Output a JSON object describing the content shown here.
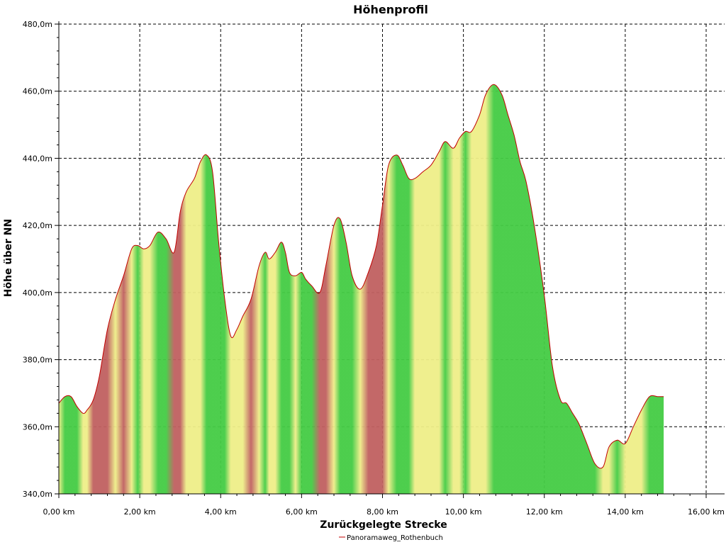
{
  "chart_data": {
    "type": "area",
    "title": "Höhenprofil",
    "xlabel": "Zurückgelegte Strecke",
    "ylabel": "Höhe über NN",
    "xlim": [
      0,
      16
    ],
    "ylim": [
      340,
      480
    ],
    "x_ticks": [
      0,
      2,
      4,
      6,
      8,
      10,
      12,
      14,
      16
    ],
    "x_tick_labels": [
      "0,00 km",
      "2,00 km",
      "4,00 km",
      "6,00 km",
      "8,00 km",
      "10,00 km",
      "12,00 km",
      "14,00 km",
      "16,00 km"
    ],
    "y_ticks": [
      340,
      360,
      380,
      400,
      420,
      440,
      460,
      480
    ],
    "y_tick_labels": [
      "340,0m",
      "360,0m",
      "380,0m",
      "400,0m",
      "420,0m",
      "440,0m",
      "460,0m",
      "480,0m"
    ],
    "grid": true,
    "legend": "bottom-center",
    "colors": {
      "line": "#c00000",
      "gradient_low": "#44cc44",
      "gradient_mid": "#eeee88",
      "gradient_high": "#c06060"
    },
    "series": [
      {
        "name": "Panoramaweg_Rothenbuch",
        "x": [
          0.0,
          0.15,
          0.3,
          0.45,
          0.6,
          0.7,
          0.85,
          1.0,
          1.2,
          1.4,
          1.6,
          1.8,
          1.95,
          2.1,
          2.25,
          2.45,
          2.65,
          2.85,
          3.0,
          3.15,
          3.35,
          3.5,
          3.65,
          3.8,
          3.95,
          4.1,
          4.25,
          4.4,
          4.55,
          4.75,
          4.95,
          5.1,
          5.2,
          5.35,
          5.5,
          5.6,
          5.7,
          5.85,
          6.0,
          6.1,
          6.25,
          6.45,
          6.6,
          6.8,
          6.95,
          7.1,
          7.25,
          7.45,
          7.65,
          7.85,
          8.0,
          8.15,
          8.35,
          8.5,
          8.65,
          8.8,
          9.0,
          9.2,
          9.4,
          9.55,
          9.75,
          9.9,
          10.05,
          10.2,
          10.4,
          10.55,
          10.75,
          10.95,
          11.1,
          11.25,
          11.4,
          11.55,
          11.75,
          12.0,
          12.2,
          12.4,
          12.55,
          12.7,
          12.85,
          13.05,
          13.25,
          13.45,
          13.6,
          13.8,
          14.0,
          14.2,
          14.4,
          14.6,
          14.8,
          14.95
        ],
        "y": [
          367,
          369,
          369,
          366,
          364,
          365,
          368,
          375,
          389,
          398,
          405,
          413,
          414,
          413,
          414,
          418,
          416,
          412,
          424,
          430,
          434,
          439,
          441,
          436,
          415,
          398,
          387,
          389,
          393,
          398,
          408,
          412,
          410,
          412,
          415,
          412,
          406,
          405,
          406,
          404,
          402,
          400,
          408,
          420,
          422,
          415,
          405,
          401,
          406,
          414,
          426,
          438,
          441,
          438,
          434,
          434,
          436,
          438,
          442,
          445,
          443,
          446,
          448,
          448,
          453,
          459,
          462,
          459,
          453,
          447,
          439,
          433,
          420,
          399,
          378,
          368,
          367,
          364,
          361,
          355,
          349,
          348,
          354,
          356,
          355,
          360,
          365,
          369,
          369,
          369
        ]
      }
    ]
  }
}
